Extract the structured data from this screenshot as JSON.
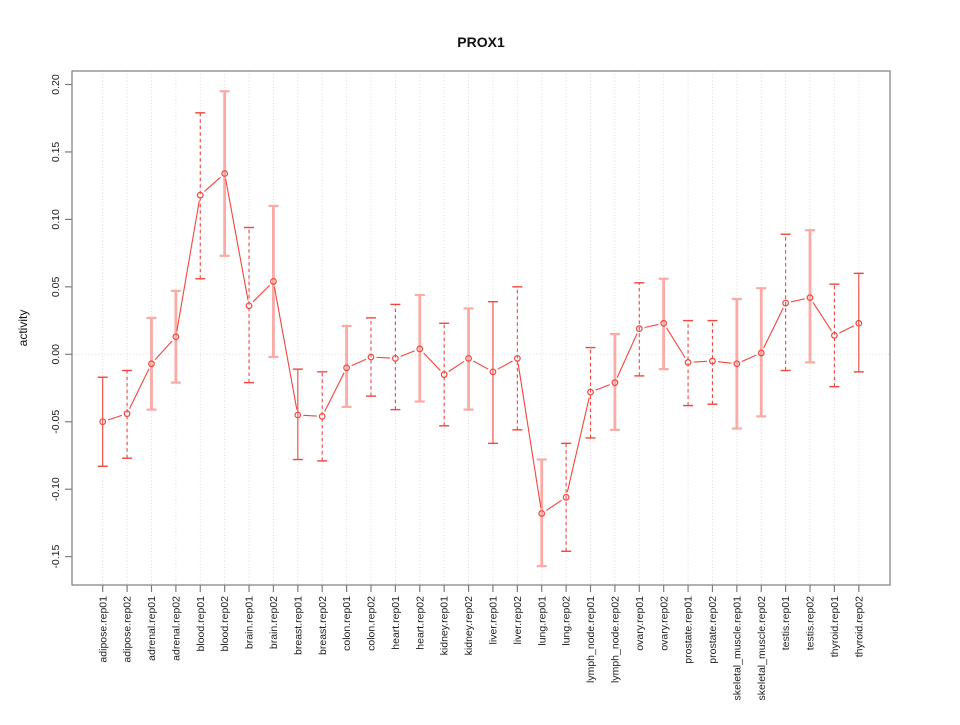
{
  "chart_data": {
    "type": "line",
    "title": "PROX1",
    "xlabel": "",
    "ylabel": "activity",
    "ylim": [
      -0.171,
      0.21
    ],
    "yticks": [
      -0.15,
      -0.1,
      -0.05,
      0.0,
      0.05,
      0.1,
      0.15,
      0.2
    ],
    "grid": {
      "vertical_per_category": true,
      "zero_line": true,
      "style": "dotted"
    },
    "legend": "none",
    "point_marker": "open-circle",
    "colors": {
      "line": "#f2453d",
      "band": "#fbaaa6",
      "grid": "#d9d9d9",
      "axis": "#7d7d7d",
      "text": "#1c1c1c"
    },
    "categories": [
      "adipose.rep01",
      "adipose.rep02",
      "adrenal.rep01",
      "adrenal.rep02",
      "blood.rep01",
      "blood.rep02",
      "brain.rep01",
      "brain.rep02",
      "breast.rep01",
      "breast.rep02",
      "colon.rep01",
      "colon.rep02",
      "heart.rep01",
      "heart.rep02",
      "kidney.rep01",
      "kidney.rep02",
      "liver.rep01",
      "liver.rep02",
      "lung.rep01",
      "lung.rep02",
      "lymph_node.rep01",
      "lymph_node.rep02",
      "ovary.rep01",
      "ovary.rep02",
      "prostate.rep01",
      "prostate.rep02",
      "skeletal_muscle.rep01",
      "skeletal_muscle.rep02",
      "testis.rep01",
      "testis.rep02",
      "thyroid.rep01",
      "thyroid.rep02"
    ],
    "series": [
      {
        "name": "activity",
        "values": [
          -0.05,
          -0.044,
          -0.007,
          0.013,
          0.118,
          0.134,
          0.036,
          0.054,
          -0.045,
          -0.046,
          -0.01,
          -0.002,
          -0.003,
          0.004,
          -0.015,
          -0.003,
          -0.013,
          -0.003,
          -0.118,
          -0.106,
          -0.028,
          -0.021,
          0.019,
          0.023,
          -0.006,
          -0.005,
          -0.007,
          0.001,
          0.038,
          0.042,
          0.014,
          0.023
        ],
        "error_lower": [
          -0.083,
          -0.077,
          -0.041,
          -0.021,
          0.056,
          0.073,
          -0.021,
          -0.002,
          -0.078,
          -0.079,
          -0.039,
          -0.031,
          -0.041,
          -0.035,
          -0.053,
          -0.041,
          -0.066,
          -0.056,
          -0.157,
          -0.146,
          -0.062,
          -0.056,
          -0.016,
          -0.011,
          -0.038,
          -0.037,
          -0.055,
          -0.046,
          -0.012,
          -0.006,
          -0.024,
          -0.013
        ],
        "error_upper": [
          -0.017,
          -0.012,
          0.027,
          0.047,
          0.179,
          0.195,
          0.094,
          0.11,
          -0.011,
          -0.013,
          0.021,
          0.027,
          0.037,
          0.044,
          0.023,
          0.034,
          0.039,
          0.05,
          -0.078,
          -0.066,
          0.005,
          0.015,
          0.053,
          0.056,
          0.025,
          0.025,
          0.041,
          0.049,
          0.089,
          0.092,
          0.052,
          0.06
        ],
        "error_bar_styles": [
          "solid",
          "dashed",
          "thick",
          "thick",
          "dashed",
          "thick",
          "dashed",
          "thick",
          "solid",
          "dashed",
          "thick",
          "dashed",
          "dashed",
          "thick",
          "dashed",
          "thick",
          "solid",
          "dashed",
          "thick",
          "dashed",
          "dashed",
          "thick",
          "dashed",
          "thick",
          "dashed",
          "dashed",
          "thick",
          "thick",
          "dashed",
          "thick",
          "dashed",
          "solid"
        ]
      }
    ]
  }
}
